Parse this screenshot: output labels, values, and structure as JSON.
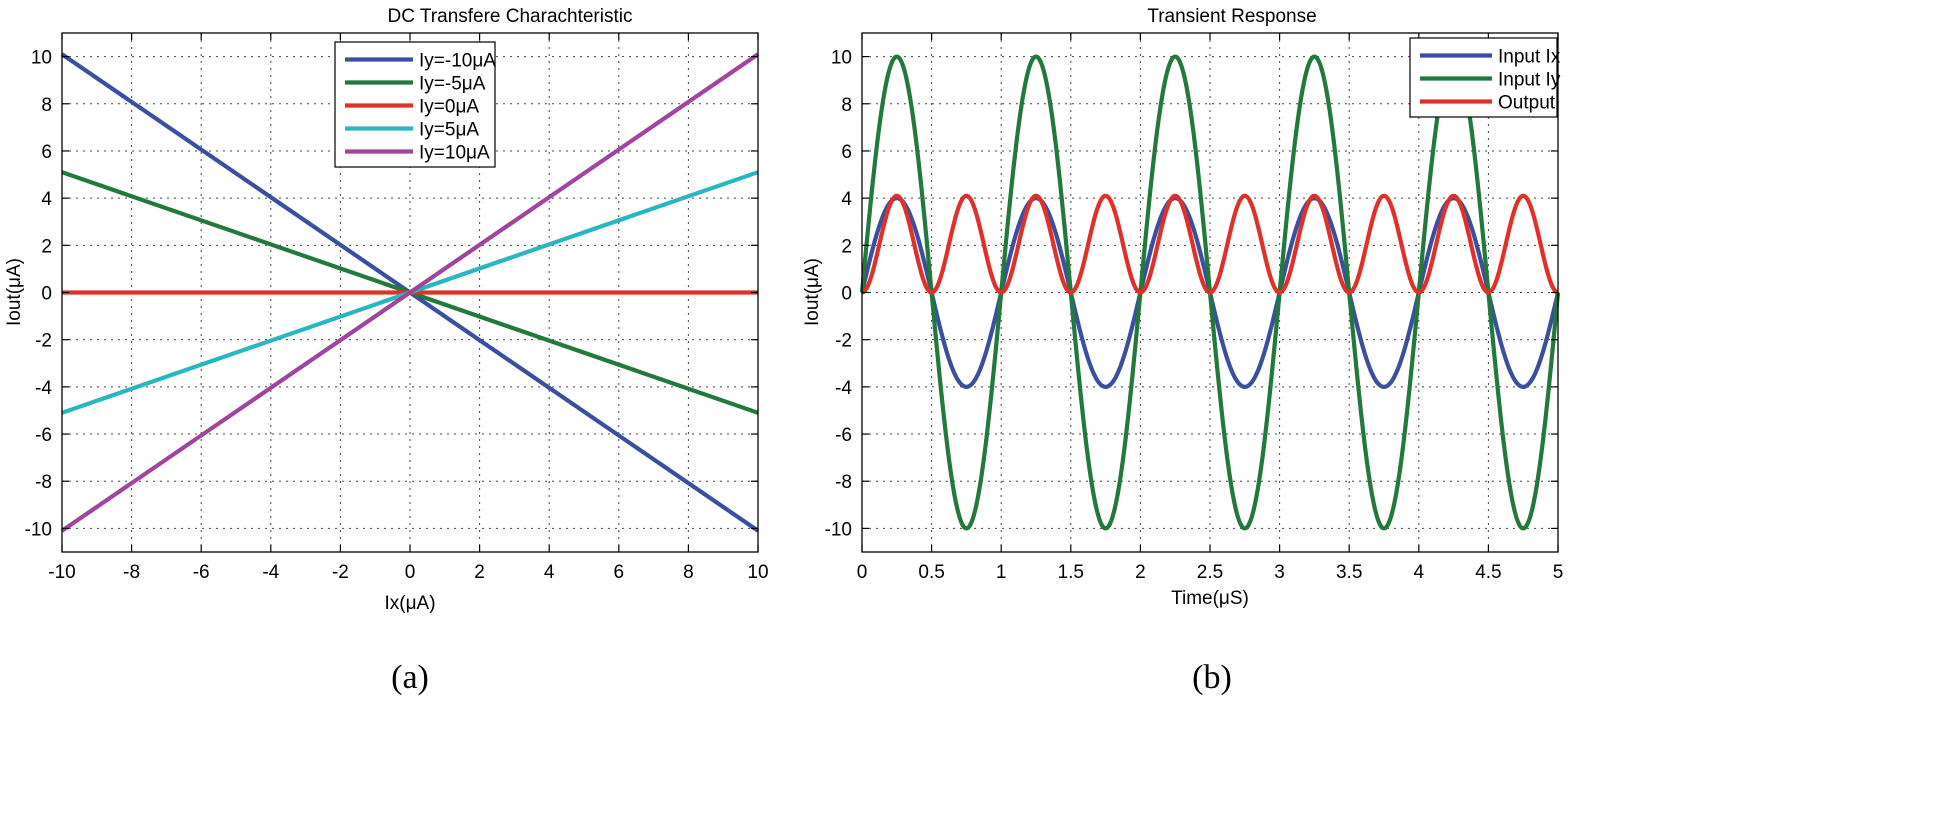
{
  "chart_data": [
    {
      "type": "line",
      "title": "DC Transfere Charachteristic",
      "xlabel": "Ix(μA)",
      "ylabel": "Iout(μA)",
      "xlim": [
        -10,
        10
      ],
      "ylim": [
        -11,
        11
      ],
      "xticks": [
        -10,
        -8,
        -6,
        -4,
        -2,
        0,
        2,
        4,
        6,
        8,
        10
      ],
      "yticks": [
        -10,
        -8,
        -6,
        -4,
        -2,
        0,
        2,
        4,
        6,
        8,
        10
      ],
      "grid": true,
      "legend_position": "top-center",
      "series": [
        {
          "name": "Iy=-10μA",
          "color": "#3a4fa0",
          "x": [
            -10,
            0,
            10
          ],
          "y": [
            10.1,
            0,
            -10.1
          ]
        },
        {
          "name": "Iy=-5μA",
          "color": "#217a3c",
          "x": [
            -10,
            0,
            10
          ],
          "y": [
            5.1,
            0,
            -5.1
          ]
        },
        {
          "name": "Iy=0μA",
          "color": "#e0302a",
          "x": [
            -10,
            0,
            10
          ],
          "y": [
            0,
            0,
            0
          ]
        },
        {
          "name": "Iy=5μA",
          "color": "#27b7c0",
          "x": [
            -10,
            0,
            10
          ],
          "y": [
            -5.1,
            0,
            5.1
          ]
        },
        {
          "name": "Iy=10μA",
          "color": "#a0449d",
          "x": [
            -10,
            0,
            10
          ],
          "y": [
            -10.1,
            0,
            10.1
          ]
        }
      ]
    },
    {
      "type": "line",
      "title": "Transient Response",
      "xlabel": "Time(μS)",
      "ylabel": "Iout(μA)",
      "xlim": [
        0,
        5
      ],
      "ylim": [
        -11,
        11
      ],
      "xticks": [
        0,
        0.5,
        1,
        1.5,
        2,
        2.5,
        3,
        3.5,
        4,
        4.5,
        5
      ],
      "yticks": [
        -10,
        -8,
        -6,
        -4,
        -2,
        0,
        2,
        4,
        6,
        8,
        10
      ],
      "grid": true,
      "legend_position": "top-right",
      "series": [
        {
          "name": "Input Ix",
          "color": "#3a4fa0",
          "waveform": "sine",
          "amplitude": 4,
          "frequency_per_uS": 1,
          "offset": 0
        },
        {
          "name": "Input Iy",
          "color": "#217a3c",
          "waveform": "sine",
          "amplitude": 10,
          "frequency_per_uS": 1,
          "offset": 0
        },
        {
          "name": "Output",
          "color": "#e0302a",
          "waveform": "sine_squared",
          "amplitude": 4.1,
          "frequency_per_uS": 1,
          "offset": 0
        }
      ]
    }
  ],
  "panel_labels": [
    "(a)",
    "(b)"
  ]
}
